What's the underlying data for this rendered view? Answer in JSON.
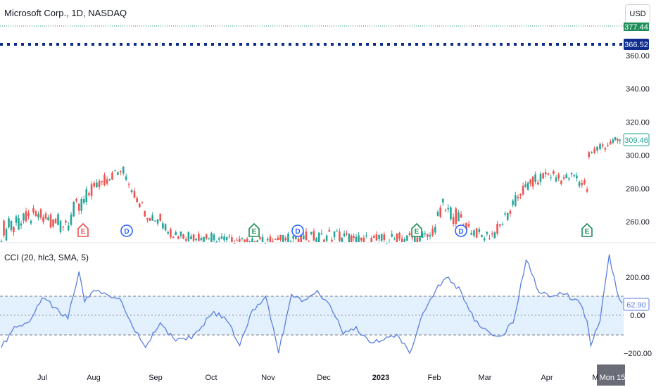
{
  "header": {
    "symbol_title": "Microsoft Corp., 1D, NASDAQ",
    "currency_button": "USD",
    "cci_title": "CCI (20, hlc3, SMA, 5)"
  },
  "price_tags": {
    "top_partial": "377.44",
    "dotted_line": "366.52",
    "last_price": "309.46",
    "cci_value": "62.90"
  },
  "time_axis": {
    "labels": [
      "Jul",
      "Aug",
      "Sep",
      "Oct",
      "Nov",
      "Dec",
      "2023",
      "Feb",
      "Mar",
      "Apr",
      "M",
      "Mon 15"
    ],
    "highlight": "Mon 15"
  },
  "events": [
    {
      "letter": "E",
      "kind": "earnings-red"
    },
    {
      "letter": "D",
      "kind": "dividend"
    },
    {
      "letter": "E",
      "kind": "earnings"
    },
    {
      "letter": "D",
      "kind": "dividend"
    },
    {
      "letter": "E",
      "kind": "earnings"
    },
    {
      "letter": "D",
      "kind": "dividend"
    },
    {
      "letter": "E",
      "kind": "earnings"
    }
  ],
  "colors": {
    "up": "#26a69a",
    "down": "#ef5350",
    "cci_line": "#5b7fe0",
    "band_fill": "#e3f0fd",
    "dotted_navy": "#0d2c8e",
    "green_line": "#1e8e5a"
  },
  "chart_data": [
    {
      "type": "candlestick",
      "title": "Microsoft Corp., 1D, NASDAQ",
      "y_ticks": [
        260,
        280,
        300,
        320,
        340,
        360
      ],
      "ylim": [
        246,
        373
      ],
      "grid": false,
      "points": [
        [
          "2022-06-13",
          245,
          262
        ],
        [
          "2022-06-21",
          253,
          263
        ],
        [
          "2022-06-29",
          257,
          268
        ],
        [
          "2022-07-07",
          259,
          268
        ],
        [
          "2022-07-15",
          252,
          264
        ],
        [
          "2022-07-25",
          258,
          276
        ],
        [
          "2022-07-29",
          270,
          280
        ],
        [
          "2022-08-05",
          279,
          286
        ],
        [
          "2022-08-12",
          285,
          291
        ],
        [
          "2022-08-18",
          289,
          293
        ],
        [
          "2022-08-24",
          274,
          279
        ],
        [
          "2022-08-31",
          261,
          267
        ],
        [
          "2022-09-07",
          258,
          266
        ],
        [
          "2022-09-14",
          249,
          257
        ],
        [
          "2022-10-24",
          247,
          249
        ],
        [
          "2022-12-13",
          247,
          256
        ],
        [
          "2022-12-22",
          243,
          252
        ],
        [
          "2023-01-31",
          248,
          254
        ],
        [
          "2023-02-07",
          262,
          274
        ],
        [
          "2023-02-14",
          258,
          268
        ],
        [
          "2023-02-21",
          254,
          259
        ],
        [
          "2023-02-28",
          248,
          254
        ],
        [
          "2023-03-07",
          250,
          256
        ],
        [
          "2023-03-14",
          260,
          268
        ],
        [
          "2023-03-21",
          274,
          281
        ],
        [
          "2023-03-29",
          281,
          288
        ],
        [
          "2023-04-05",
          286,
          291
        ],
        [
          "2023-04-12",
          283,
          288
        ],
        [
          "2023-04-19",
          285,
          290
        ],
        [
          "2023-04-26",
          276,
          285
        ],
        [
          "2023-04-27",
          297,
          302
        ],
        [
          "2023-05-03",
          301,
          309
        ],
        [
          "2023-05-10",
          306,
          310
        ],
        [
          "2023-05-15",
          307,
          311
        ]
      ],
      "events": [
        "E",
        "D",
        "E",
        "D",
        "E",
        "D",
        "E"
      ],
      "last_price": 309.46,
      "reference_lines": [
        366.52,
        377.44
      ]
    },
    {
      "type": "line",
      "title": "CCI (20, hlc3, SMA, 5)",
      "y_ticks": [
        -200,
        0,
        200
      ],
      "bands": [
        -100,
        100
      ],
      "ylim": [
        -230,
        330
      ],
      "series": [
        {
          "name": "CCI",
          "x": [
            "2022-06-13",
            "2022-06-20",
            "2022-06-27",
            "2022-07-05",
            "2022-07-12",
            "2022-07-19",
            "2022-07-25",
            "2022-07-28",
            "2022-08-02",
            "2022-08-09",
            "2022-08-16",
            "2022-08-23",
            "2022-08-30",
            "2022-09-07",
            "2022-09-14",
            "2022-09-21",
            "2022-09-28",
            "2022-10-06",
            "2022-10-13",
            "2022-10-20",
            "2022-10-27",
            "2022-11-03",
            "2022-11-10",
            "2022-11-17",
            "2022-11-24",
            "2022-12-01",
            "2022-12-08",
            "2022-12-15",
            "2022-12-22",
            "2022-12-29",
            "2023-01-06",
            "2023-01-13",
            "2023-01-20",
            "2023-01-27",
            "2023-02-03",
            "2023-02-10",
            "2023-02-17",
            "2023-02-24",
            "2023-03-03",
            "2023-03-10",
            "2023-03-17",
            "2023-03-24",
            "2023-03-31",
            "2023-04-07",
            "2023-04-14",
            "2023-04-21",
            "2023-04-26",
            "2023-04-28",
            "2023-05-03",
            "2023-05-08",
            "2023-05-12",
            "2023-05-15"
          ],
          "values": [
            -170,
            -60,
            -40,
            90,
            40,
            -20,
            230,
            70,
            130,
            110,
            90,
            -60,
            -170,
            -40,
            -120,
            -130,
            -80,
            20,
            -30,
            -160,
            30,
            100,
            -200,
            110,
            80,
            130,
            50,
            -100,
            -60,
            -140,
            -130,
            -100,
            -200,
            10,
            130,
            200,
            120,
            -30,
            -80,
            -110,
            -40,
            290,
            120,
            100,
            110,
            80,
            -30,
            -160,
            -30,
            320,
            130,
            62.9
          ]
        }
      ]
    }
  ]
}
